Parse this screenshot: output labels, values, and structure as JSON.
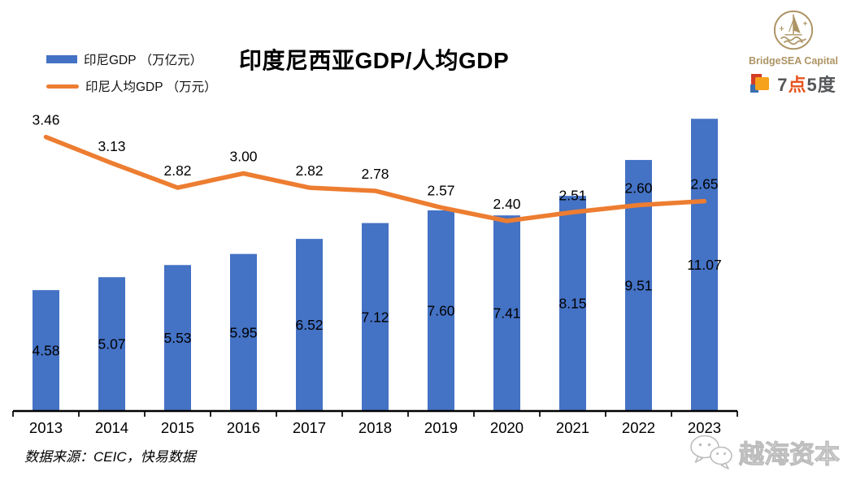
{
  "title": "印度尼西亚GDP/人均GDP",
  "legend": {
    "items": [
      {
        "label": "印尼GDP （万亿元）",
        "color": "#4472C4",
        "marker": "bar"
      },
      {
        "label": "印尼人均GDP （万元）",
        "color": "#ED7D31",
        "marker": "line"
      }
    ]
  },
  "chart_data": {
    "type": "bar",
    "combo": "bar+line",
    "title": "印度尼西亚GDP/人均GDP",
    "categories": [
      "2013",
      "2014",
      "2015",
      "2016",
      "2017",
      "2018",
      "2019",
      "2020",
      "2021",
      "2022",
      "2023"
    ],
    "series": [
      {
        "name": "印尼GDP （万亿元）",
        "type": "bar",
        "color": "#4472C4",
        "axis": "primary",
        "axis_range": [
          0,
          12
        ],
        "values": [
          4.58,
          5.07,
          5.53,
          5.95,
          6.52,
          7.12,
          7.6,
          7.41,
          8.15,
          9.51,
          11.07
        ]
      },
      {
        "name": "印尼人均GDP （万元）",
        "type": "line",
        "color": "#ED7D31",
        "axis": "secondary",
        "axis_range": [
          0,
          4
        ],
        "values": [
          3.46,
          3.13,
          2.82,
          3.0,
          2.82,
          2.78,
          2.57,
          2.4,
          2.51,
          2.6,
          2.65
        ]
      }
    ],
    "xlabel": "",
    "ylabel": "",
    "grid": false,
    "legend_position": "top-left",
    "data_labels": true,
    "axis_color": "#000000",
    "label_color": "#000000"
  },
  "source_note": "数据来源：CEIC，快易数据",
  "branding": {
    "bridgesea": {
      "name": "BridgeSEA Capital",
      "color": "#AD9464"
    },
    "seven_five": {
      "part1": "7",
      "part2": "点",
      "part3": "5",
      "part4": "度",
      "text_color": "#555759",
      "accent_color": "#E8541E",
      "square_colors": {
        "red": "#D43C25",
        "orange": "#F7A21B",
        "blue": "#3A6FB0"
      }
    }
  },
  "watermark": {
    "label": "越海资本"
  }
}
